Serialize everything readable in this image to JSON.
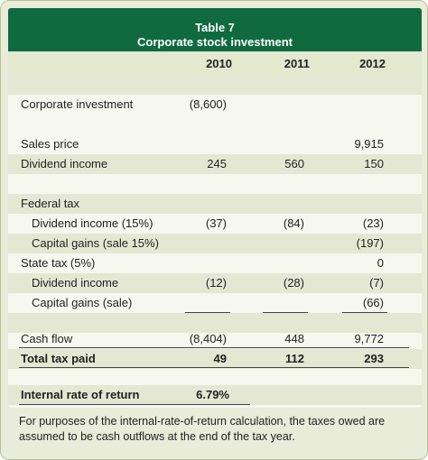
{
  "table": {
    "number": "Table 7",
    "title": "Corporate stock investment",
    "columns": [
      "2010",
      "2011",
      "2012"
    ],
    "rows": [
      {
        "label": "Corporate investment",
        "values": [
          "(8,600)",
          "",
          ""
        ]
      },
      {
        "label": "Sales price",
        "values": [
          "",
          "",
          "9,915"
        ]
      },
      {
        "label": "Dividend income",
        "values": [
          "245",
          "560",
          "150"
        ]
      },
      {
        "label": "Federal tax",
        "values": [
          "",
          "",
          ""
        ]
      },
      {
        "label": "Dividend income (15%)",
        "values": [
          "(37)",
          "(84)",
          "(23)"
        ]
      },
      {
        "label": "Capital gains (sale 15%)",
        "values": [
          "",
          "",
          "(197)"
        ]
      },
      {
        "label": "State tax (5%)",
        "values": [
          "",
          "",
          "0"
        ]
      },
      {
        "label": "Dividend income",
        "values": [
          "(12)",
          "(28)",
          "(7)"
        ]
      },
      {
        "label": "Capital gains (sale)",
        "values": [
          "",
          "",
          "(66)"
        ]
      },
      {
        "label": "Cash flow",
        "values": [
          "(8,404)",
          "448",
          "9,772"
        ]
      },
      {
        "label": "Total tax paid",
        "values": [
          "49",
          "112",
          "293"
        ]
      },
      {
        "label": "Internal rate of return",
        "values": [
          "6.79%",
          "",
          ""
        ]
      }
    ]
  },
  "footnote": "For purposes of the internal-rate-of-return calculation, the taxes owed are assumed to be cash outflows at the end of the tax year.",
  "colors": {
    "header": "#0f6b3f",
    "panel": "#f6f7ee",
    "shade": "#e4e8d2",
    "frame": "#e8ecd9"
  }
}
